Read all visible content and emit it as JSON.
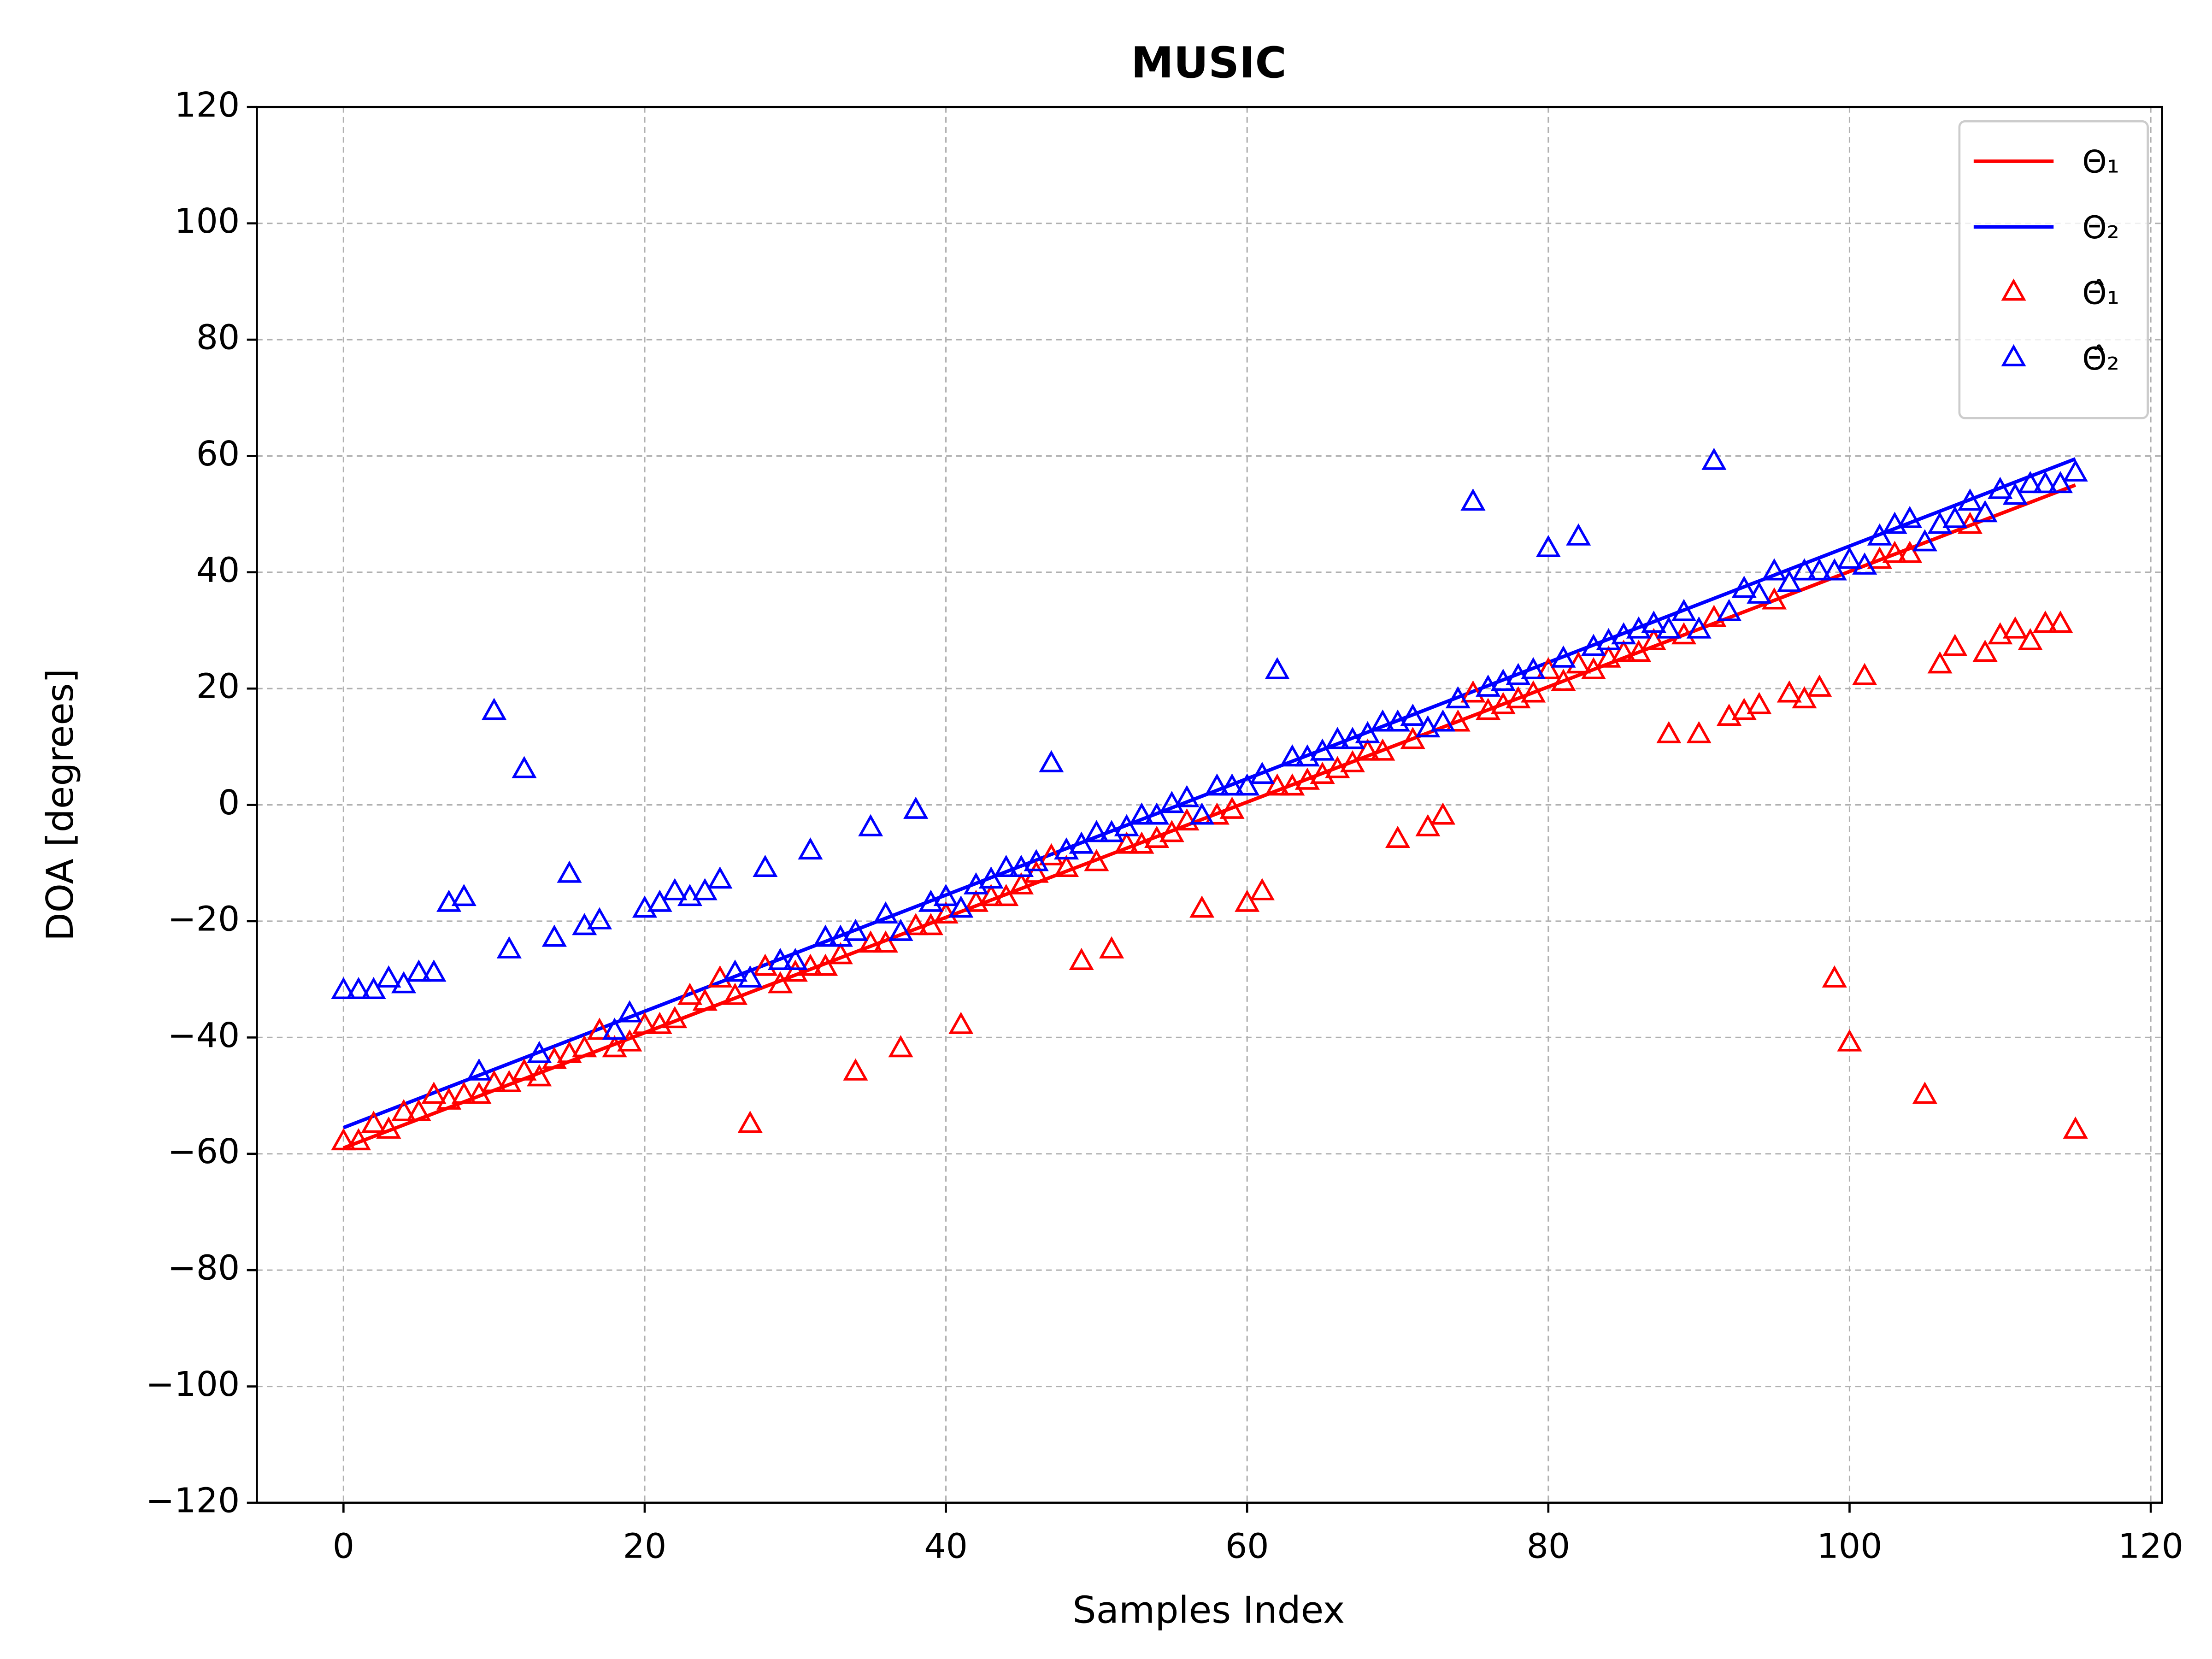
{
  "chart_data": {
    "type": "line",
    "title": "MUSIC",
    "x_label": "Samples Index",
    "y_label": "DOA [degrees]",
    "xlim": [
      -5.75,
      120.75
    ],
    "ylim": [
      -120,
      120
    ],
    "xticks": [
      0,
      20,
      40,
      60,
      80,
      100,
      120
    ],
    "yticks": [
      {
        "value": -120,
        "label": "−120"
      },
      {
        "value": -100,
        "label": "−100"
      },
      {
        "value": -80,
        "label": "−80"
      },
      {
        "value": -60,
        "label": "−60"
      },
      {
        "value": -40,
        "label": "−40"
      },
      {
        "value": -20,
        "label": "−20"
      },
      0,
      20,
      40,
      60,
      80,
      100,
      120
    ],
    "grid": true,
    "legend": "upper right",
    "series": [
      {
        "name": "Θ₁",
        "type": "line",
        "color": "#ff0000",
        "x": [
          0,
          115
        ],
        "values": [
          -59,
          55
        ]
      },
      {
        "name": "Θ₂",
        "type": "line",
        "color": "#0000ff",
        "x": [
          0,
          115
        ],
        "values": [
          -55.5,
          59.5
        ]
      },
      {
        "name": "Θ̂₁",
        "type": "scatter",
        "color": "#ff0000",
        "x": [
          0,
          1,
          2,
          3,
          4,
          5,
          6,
          7,
          8,
          9,
          10,
          11,
          12,
          13,
          14,
          15,
          16,
          17,
          18,
          19,
          20,
          21,
          22,
          23,
          24,
          25,
          26,
          27,
          28,
          29,
          30,
          31,
          32,
          33,
          34,
          35,
          36,
          37,
          38,
          39,
          40,
          41,
          42,
          43,
          44,
          45,
          46,
          47,
          48,
          49,
          50,
          51,
          52,
          53,
          54,
          55,
          56,
          57,
          58,
          59,
          60,
          61,
          62,
          63,
          64,
          65,
          66,
          67,
          68,
          69,
          70,
          71,
          72,
          73,
          74,
          75,
          76,
          77,
          78,
          79,
          80,
          81,
          82,
          83,
          84,
          85,
          86,
          87,
          88,
          89,
          90,
          91,
          92,
          93,
          94,
          95,
          96,
          97,
          98,
          99,
          100,
          101,
          102,
          103,
          104,
          105,
          106,
          107,
          108,
          109,
          110,
          111,
          112,
          113,
          114,
          115
        ],
        "values": [
          -58,
          -58,
          -55,
          -56,
          -53,
          -53,
          -50,
          -51,
          -50,
          -50,
          -48,
          -48,
          -46,
          -47,
          -44,
          -43,
          -42,
          -39,
          -42,
          -41,
          -38,
          -38,
          -37,
          -33,
          -34,
          -30,
          -33,
          -55,
          -28,
          -31,
          -29,
          -28,
          -28,
          -26,
          -46,
          -24,
          -24,
          -42,
          -21,
          -21,
          -19,
          -38,
          -17,
          -16,
          -16,
          -14,
          -12,
          -9,
          -11,
          -27,
          -10,
          -25,
          -7,
          -7,
          -6,
          -5,
          -3,
          -18,
          -2,
          -1,
          -17,
          -15,
          3,
          3,
          4,
          5,
          6,
          7,
          9,
          9,
          -6,
          11,
          -4,
          -2,
          14,
          19,
          16,
          17,
          18,
          19,
          23,
          21,
          24,
          23,
          25,
          26,
          26,
          28,
          12,
          29,
          12,
          32,
          15,
          16,
          17,
          35,
          19,
          18,
          20,
          -30,
          -41,
          22,
          42,
          43,
          43,
          -50,
          24,
          27,
          48,
          26,
          29,
          30,
          28,
          31,
          31,
          -56
        ]
      },
      {
        "name": "Θ̂₂",
        "type": "scatter",
        "color": "#0000ff",
        "x": [
          0,
          1,
          2,
          3,
          4,
          5,
          6,
          7,
          8,
          9,
          10,
          11,
          12,
          13,
          14,
          15,
          16,
          17,
          18,
          19,
          20,
          21,
          22,
          23,
          24,
          25,
          26,
          27,
          28,
          29,
          30,
          31,
          32,
          33,
          34,
          35,
          36,
          37,
          38,
          39,
          40,
          41,
          42,
          43,
          44,
          45,
          46,
          47,
          48,
          49,
          50,
          51,
          52,
          53,
          54,
          55,
          56,
          57,
          58,
          59,
          60,
          61,
          62,
          63,
          64,
          65,
          66,
          67,
          68,
          69,
          70,
          71,
          72,
          73,
          74,
          75,
          76,
          77,
          78,
          79,
          80,
          81,
          82,
          83,
          84,
          85,
          86,
          87,
          88,
          89,
          90,
          91,
          92,
          93,
          94,
          95,
          96,
          97,
          98,
          99,
          100,
          101,
          102,
          103,
          104,
          105,
          106,
          107,
          108,
          109,
          110,
          111,
          112,
          113,
          114,
          115
        ],
        "values": [
          -32,
          -32,
          -32,
          -30,
          -31,
          -29,
          -29,
          -17,
          -16,
          -46,
          16,
          -25,
          6,
          -43,
          -23,
          -12,
          -21,
          -20,
          -39,
          -36,
          -18,
          -17,
          -15,
          -16,
          -15,
          -13,
          -29,
          -30,
          -11,
          -27,
          -27,
          -8,
          -23,
          -23,
          -22,
          -4,
          -19,
          -22,
          -1,
          -17,
          -16,
          -18,
          -14,
          -13,
          -11,
          -11,
          -10,
          7,
          -8,
          -7,
          -5,
          -5,
          -4,
          -2,
          -2,
          0,
          1,
          -2,
          3,
          3,
          3,
          5,
          23,
          8,
          8,
          9,
          11,
          11,
          12,
          14,
          14,
          15,
          13,
          14,
          18,
          52,
          20,
          21,
          22,
          23,
          44,
          25,
          46,
          27,
          28,
          29,
          30,
          31,
          30,
          33,
          30,
          59,
          33,
          37,
          36,
          40,
          38,
          40,
          40,
          40,
          42,
          41,
          46,
          48,
          49,
          45,
          48,
          49,
          52,
          50,
          54,
          53,
          55,
          55,
          55,
          57
        ]
      }
    ]
  }
}
